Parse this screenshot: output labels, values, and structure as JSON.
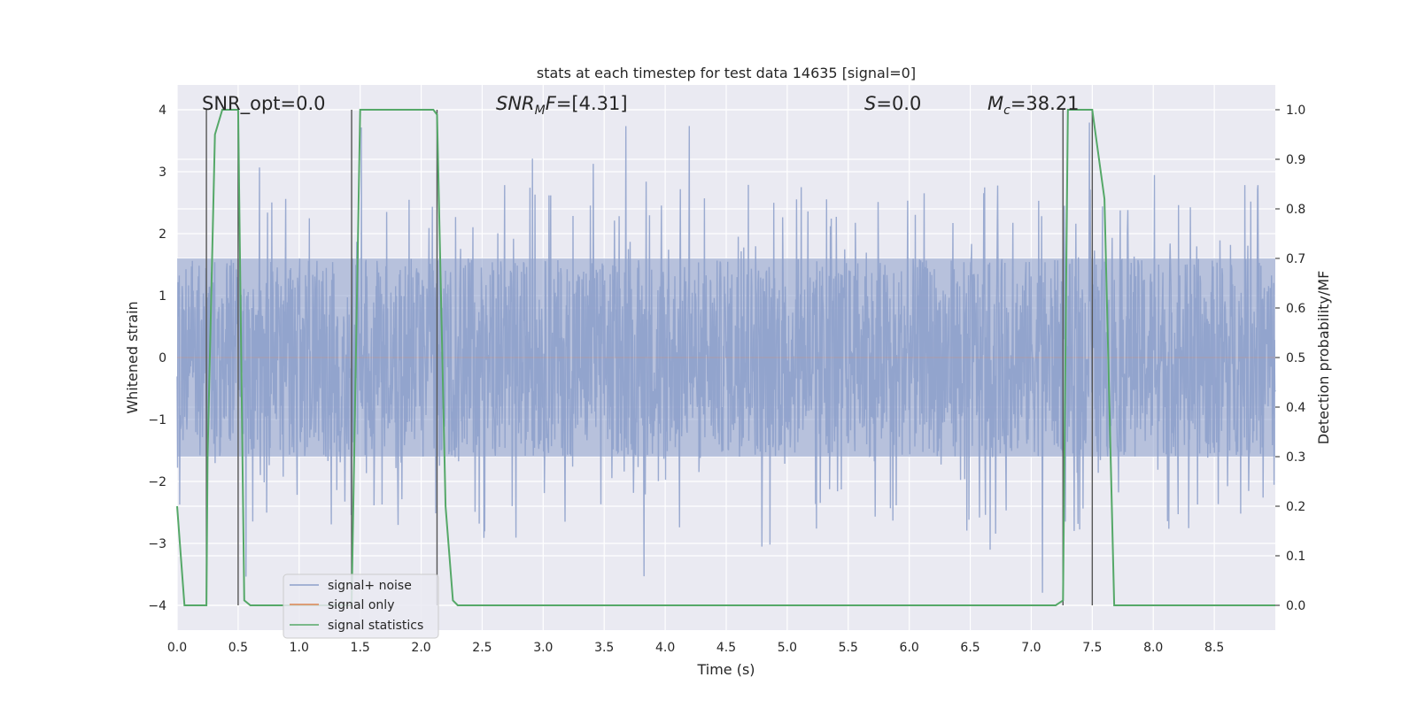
{
  "chart_data": {
    "type": "line",
    "title": "stats at each timestep for test data 14635 [signal=0]",
    "xlabel": "Time (s)",
    "ylabel_left": "Whitened strain",
    "ylabel_right": "Detection probability/MF",
    "xlim": [
      0.0,
      9.0
    ],
    "ylim_left": [
      -4.4,
      4.4
    ],
    "ylim_right": [
      -0.05,
      1.05
    ],
    "x_ticks": [
      "0.0",
      "0.5",
      "1.0",
      "1.5",
      "2.0",
      "2.5",
      "3.0",
      "3.5",
      "4.0",
      "4.5",
      "5.0",
      "5.5",
      "6.0",
      "6.5",
      "7.0",
      "7.5",
      "8.0",
      "8.5"
    ],
    "y_ticks_left": [
      "−4",
      "−3",
      "−2",
      "−1",
      "0",
      "1",
      "2",
      "3",
      "4"
    ],
    "y_ticks_right": [
      "0.0",
      "0.1",
      "0.2",
      "0.3",
      "0.4",
      "0.5",
      "0.6",
      "0.7",
      "0.8",
      "0.9",
      "1.0"
    ],
    "grid": true,
    "legend_position": "lower-left",
    "annotations": {
      "snr_opt": "SNR_opt=0.0",
      "snr_mf_main": "SNR",
      "snr_mf_sub": "M",
      "snr_mf_tail": "F",
      "snr_mf_value": "=[4.31]",
      "s_main": "S",
      "s_value": "=0.0",
      "mc_main": "M",
      "mc_sub": "c",
      "mc_value": "=38.21"
    },
    "vertical_markers_x": [
      0.24,
      0.5,
      1.43,
      2.13,
      7.26,
      7.5
    ],
    "series": [
      {
        "name": "signal+ noise",
        "axis": "left",
        "color": "#8c9fca",
        "description_envelope_left_axis": [
          -1.6,
          1.6
        ],
        "peak_range_left_axis": [
          -4.0,
          4.0
        ]
      },
      {
        "name": "signal only",
        "axis": "left",
        "color": "#dd8452",
        "values": "zero everywhere"
      },
      {
        "name": "signal statistics",
        "axis": "right",
        "color": "#55a868",
        "x": [
          0.0,
          0.06,
          0.24,
          0.25,
          0.31,
          0.37,
          0.42,
          0.48,
          0.5,
          0.55,
          0.6,
          0.65,
          1.42,
          1.43,
          1.5,
          2.0,
          2.1,
          2.13,
          2.2,
          2.26,
          2.3,
          2.35,
          2.4,
          7.2,
          7.26,
          7.3,
          7.33,
          7.5,
          7.6,
          7.68,
          7.75,
          9.0
        ],
        "y": [
          0.2,
          0.0,
          0.0,
          0.3,
          0.95,
          1.0,
          1.0,
          1.0,
          1.0,
          0.01,
          0.0,
          0.0,
          0.0,
          0.0,
          1.0,
          1.0,
          1.0,
          0.99,
          0.2,
          0.01,
          0.0,
          0.0,
          0.0,
          0.0,
          0.01,
          1.0,
          1.0,
          1.0,
          0.82,
          0.0,
          0.0,
          0.0
        ]
      }
    ]
  }
}
